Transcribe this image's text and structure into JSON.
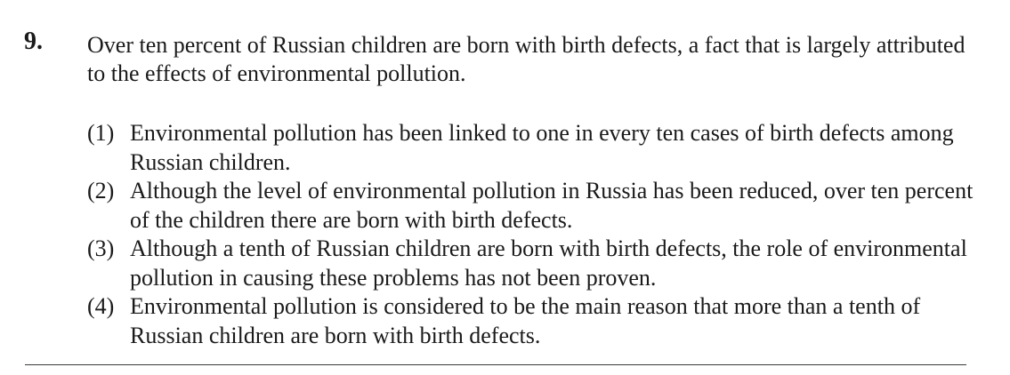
{
  "question": {
    "number": "9.",
    "stem": "Over ten percent of Russian children are born with birth defects, a fact that is largely attributed to the effects of environmental pollution.",
    "options": [
      {
        "label": "(1)",
        "text": "Environmental pollution has been linked to one in every ten cases of birth defects among Russian children."
      },
      {
        "label": "(2)",
        "text": "Although the level of environmental pollution in Russia has been reduced, over ten percent of the children there are born with birth defects."
      },
      {
        "label": "(3)",
        "text": "Although a tenth of Russian children are born with birth defects, the role of environmental pollution in causing these problems has not been proven."
      },
      {
        "label": "(4)",
        "text": "Environmental pollution is considered to be the main reason that more than a tenth of Russian children are born with birth defects."
      }
    ]
  }
}
